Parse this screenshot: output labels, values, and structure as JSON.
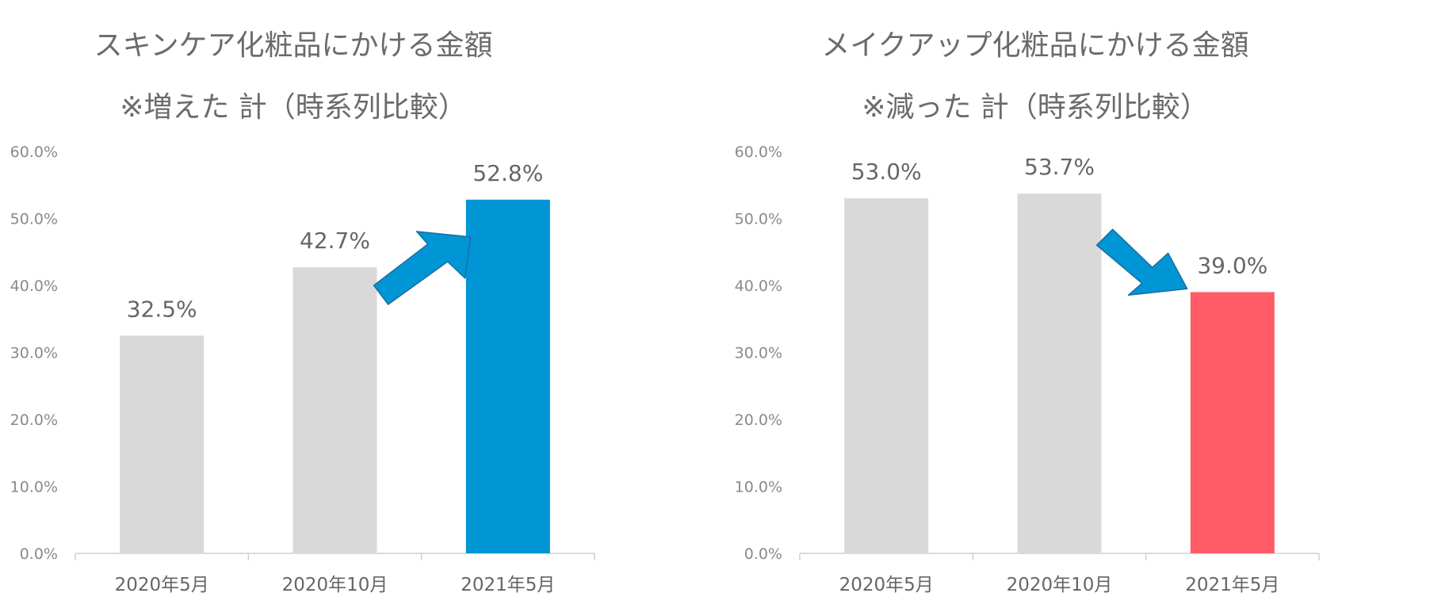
{
  "chart_data": [
    {
      "type": "bar",
      "title": "スキンケア化粧品にかける金額",
      "subtitle": "※増えた 計（時系列比較）",
      "categories": [
        "2020年5月",
        "2020年10月",
        "2021年5月"
      ],
      "values": [
        32.5,
        42.7,
        52.8
      ],
      "value_labels": [
        "32.5%",
        "42.7%",
        "52.8%"
      ],
      "yticks": [
        "0.0%",
        "10.0%",
        "20.0%",
        "30.0%",
        "40.0%",
        "50.0%",
        "60.0%"
      ],
      "ylim": [
        0,
        60
      ],
      "grid": false,
      "colors": [
        "#d9d9d9",
        "#d9d9d9",
        "#0095d5"
      ],
      "trend_arrow": "up",
      "arrow_color": "#0095d5"
    },
    {
      "type": "bar",
      "title": "メイクアップ化粧品にかける金額",
      "subtitle": "※減った 計（時系列比較）",
      "categories": [
        "2020年5月",
        "2020年10月",
        "2021年5月"
      ],
      "values": [
        53.0,
        53.7,
        39.0
      ],
      "value_labels": [
        "53.0%",
        "53.7%",
        "39.0%"
      ],
      "yticks": [
        "0.0%",
        "10.0%",
        "20.0%",
        "30.0%",
        "40.0%",
        "50.0%",
        "60.0%"
      ],
      "ylim": [
        0,
        60
      ],
      "grid": false,
      "colors": [
        "#d9d9d9",
        "#d9d9d9",
        "#ff5c67"
      ],
      "trend_arrow": "down",
      "arrow_color": "#0095d5"
    }
  ]
}
